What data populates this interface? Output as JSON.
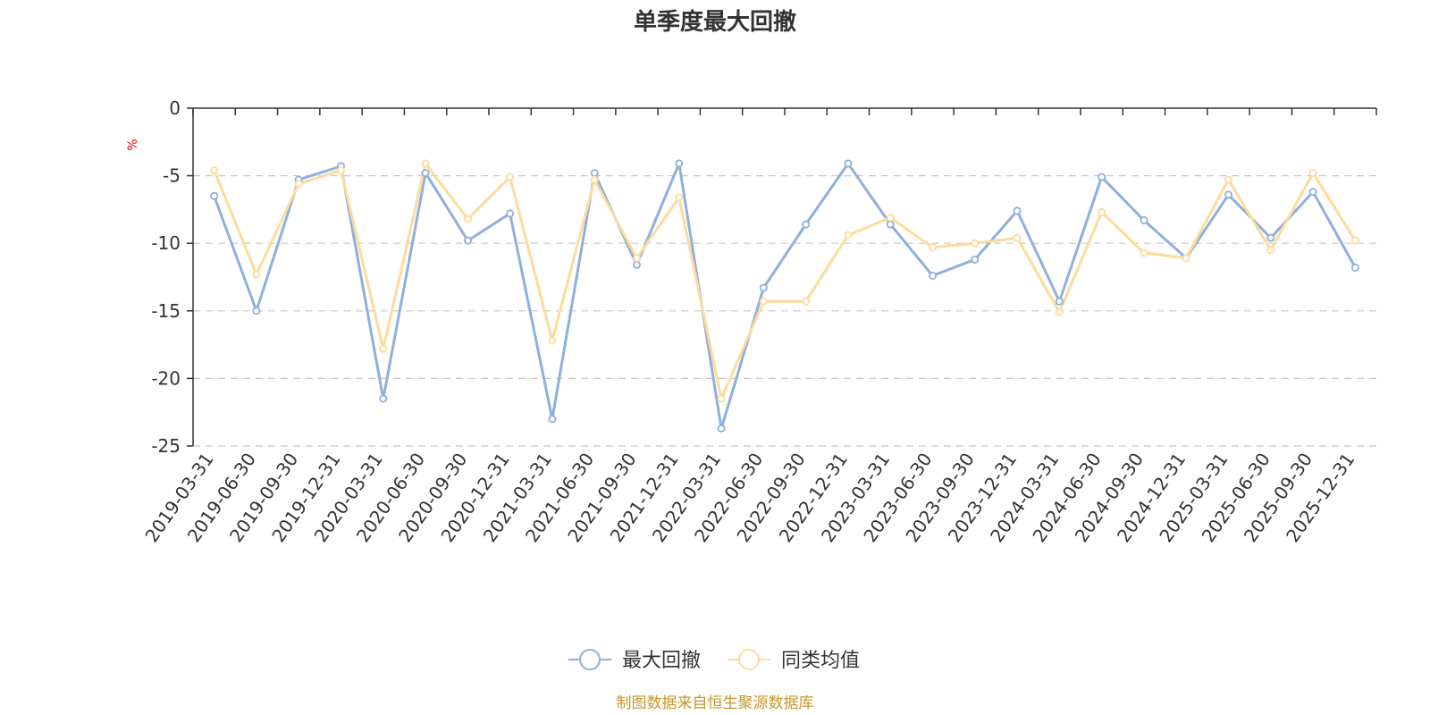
{
  "chart_data": {
    "type": "line",
    "title": "单季度最大回撤",
    "ylabel": "%",
    "ylim": [
      -25,
      0
    ],
    "yticks": [
      0,
      -5,
      -10,
      -15,
      -20,
      -25
    ],
    "grid": true,
    "legend_position": "bottom",
    "source": "制图数据来自恒生聚源数据库",
    "categories": [
      "2019-03-31",
      "2019-06-30",
      "2019-09-30",
      "2019-12-31",
      "2020-03-31",
      "2020-06-30",
      "2020-09-30",
      "2020-12-31",
      "2021-03-31",
      "2021-06-30",
      "2021-09-30",
      "2021-12-31",
      "2022-03-31",
      "2022-06-30",
      "2022-09-30",
      "2022-12-31",
      "2023-03-31",
      "2023-06-30",
      "2023-09-30",
      "2023-12-31",
      "2024-03-31",
      "2024-06-30",
      "2024-09-30",
      "2024-12-31",
      "2025-03-31",
      "2025-06-30",
      "2025-09-30",
      "2025-12-31"
    ],
    "series": [
      {
        "name": "最大回撤",
        "color": "#8eb0dc",
        "values": [
          -6.5,
          -15.0,
          -5.3,
          -4.3,
          -21.5,
          -4.8,
          -9.8,
          -7.8,
          -23.0,
          -4.8,
          -11.6,
          -4.1,
          -23.7,
          -13.3,
          -8.6,
          -4.1,
          -8.6,
          -12.4,
          -11.2,
          -7.6,
          -14.3,
          -5.1,
          -8.3,
          -11.1,
          -6.4,
          -9.6,
          -6.2,
          -11.8
        ]
      },
      {
        "name": "同类均值",
        "color": "#fddb9c",
        "values": [
          -4.6,
          -12.3,
          -5.6,
          -4.6,
          -17.8,
          -4.1,
          -8.2,
          -5.1,
          -17.2,
          -5.3,
          -11.1,
          -6.6,
          -21.5,
          -14.3,
          -14.3,
          -9.4,
          -8.1,
          -10.3,
          -10.0,
          -9.6,
          -15.1,
          -7.7,
          -10.7,
          -11.1,
          -5.3,
          -10.5,
          -4.8,
          -9.8
        ]
      }
    ]
  }
}
